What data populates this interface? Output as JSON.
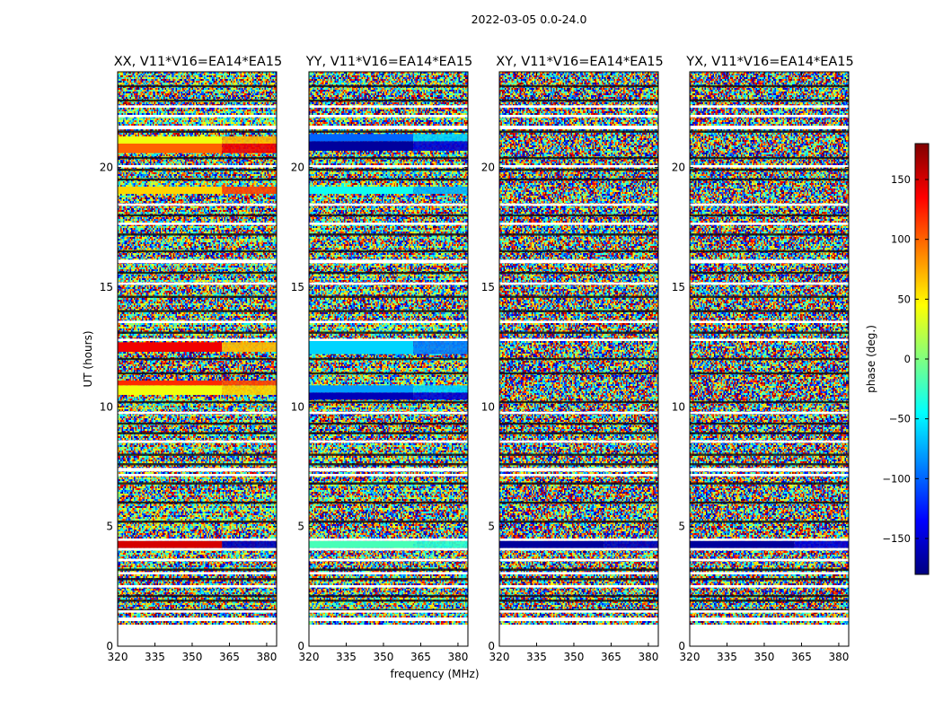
{
  "chart_data": {
    "type": "heatmap",
    "suptitle": "2022-03-05 0.0-24.0",
    "xlabel": "frequency (MHz)",
    "ylabel": "UT (hours)",
    "xlim": [
      320,
      384
    ],
    "ylim": [
      0,
      24
    ],
    "xticks": [
      320,
      335,
      350,
      365,
      380
    ],
    "xtick_labels": [
      "320",
      "335",
      "350",
      "365",
      "380"
    ],
    "yticks": [
      0,
      5,
      10,
      15,
      20
    ],
    "ytick_labels": [
      "0",
      "5",
      "10",
      "15",
      "20"
    ],
    "colorbar": {
      "label": "phase (deg.)",
      "range": [
        -180,
        180
      ],
      "ticks": [
        150,
        100,
        50,
        0,
        -50,
        -100,
        -150
      ],
      "tick_labels": [
        "150",
        "100",
        "50",
        "0",
        "−50",
        "−100",
        "−150"
      ],
      "colormap": "jet"
    },
    "panels": [
      {
        "title": "XX, V11*V16=EA14*EA15",
        "coherent_bands": [
          {
            "start": 4.1,
            "end": 4.4,
            "low_phase": 150,
            "high_phase": -160
          },
          {
            "start": 10.5,
            "end": 10.9,
            "low_phase": 40,
            "high_phase": 60
          },
          {
            "start": 10.9,
            "end": 11.1,
            "low_phase": 120,
            "high_phase": 110
          },
          {
            "start": 12.3,
            "end": 12.7,
            "low_phase": 140,
            "high_phase": 70
          },
          {
            "start": 18.9,
            "end": 19.2,
            "low_phase": 60,
            "high_phase": 110
          },
          {
            "start": 20.6,
            "end": 21.0,
            "low_phase": 100,
            "high_phase": 140
          },
          {
            "start": 21.0,
            "end": 21.3,
            "low_phase": 40,
            "high_phase": 70
          }
        ]
      },
      {
        "title": "YY, V11*V16=EA14*EA15",
        "coherent_bands": [
          {
            "start": 4.1,
            "end": 4.4,
            "low_phase": -20,
            "high_phase": -30
          },
          {
            "start": 10.3,
            "end": 10.6,
            "low_phase": -160,
            "high_phase": -150
          },
          {
            "start": 10.6,
            "end": 10.9,
            "low_phase": -80,
            "high_phase": -60
          },
          {
            "start": 12.2,
            "end": 12.8,
            "low_phase": -60,
            "high_phase": -90
          },
          {
            "start": 18.9,
            "end": 19.2,
            "low_phase": -40,
            "high_phase": -70
          },
          {
            "start": 20.7,
            "end": 21.1,
            "low_phase": -170,
            "high_phase": -150
          },
          {
            "start": 21.1,
            "end": 21.4,
            "low_phase": -100,
            "high_phase": -60
          }
        ]
      },
      {
        "title": "XY, V11*V16=EA14*EA15",
        "coherent_bands": [
          {
            "start": 4.1,
            "end": 4.4,
            "low_phase": -170,
            "high_phase": -160
          }
        ]
      },
      {
        "title": "YX, V11*V16=EA14*EA15",
        "coherent_bands": [
          {
            "start": 4.1,
            "end": 4.4,
            "low_phase": -170,
            "high_phase": -150
          }
        ]
      }
    ],
    "blank_rows": [
      [
        0,
        0.9
      ],
      [
        1.05,
        1.2
      ],
      [
        1.4,
        1.5
      ],
      [
        2.45,
        2.55
      ],
      [
        3.0,
        3.1
      ],
      [
        3.55,
        3.65
      ],
      [
        4.0,
        4.1
      ],
      [
        4.4,
        4.5
      ],
      [
        7.1,
        7.2
      ],
      [
        7.3,
        7.45
      ],
      [
        8.5,
        8.6
      ],
      [
        9.7,
        9.8
      ],
      [
        12.75,
        12.85
      ],
      [
        13.5,
        13.6
      ],
      [
        15.1,
        15.2
      ],
      [
        16.0,
        16.15
      ],
      [
        17.6,
        17.7
      ],
      [
        18.4,
        18.5
      ],
      [
        20.0,
        20.1
      ],
      [
        21.6,
        21.75
      ],
      [
        22.1,
        22.2
      ],
      [
        22.5,
        22.6
      ]
    ],
    "dark_rows": [
      1.5,
      1.9,
      2.1,
      2.8,
      3.2,
      5.2,
      6.0,
      6.8,
      7.6,
      8.0,
      8.9,
      9.3,
      10.2,
      11.4,
      12.0,
      13.1,
      14.0,
      14.6,
      15.6,
      16.5,
      17.2,
      18.0,
      19.5,
      19.9,
      20.4,
      21.5,
      22.8,
      23.4
    ]
  }
}
